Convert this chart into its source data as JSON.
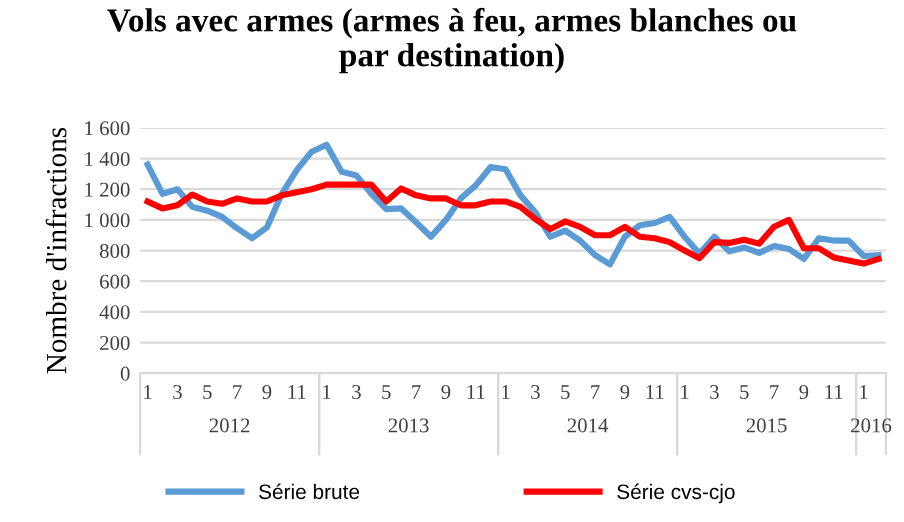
{
  "chart_data": {
    "type": "line",
    "title": "Vols avec armes (armes à feu, armes blanches ou\npar destination)",
    "ylabel": "Nombre d'infractions",
    "categories": [
      "1",
      null,
      "3",
      null,
      "5",
      null,
      "7",
      null,
      "9",
      null,
      "11",
      null,
      "1",
      null,
      "3",
      null,
      "5",
      null,
      "7",
      null,
      "9",
      null,
      "11",
      null,
      "1",
      null,
      "3",
      null,
      "5",
      null,
      "7",
      null,
      "9",
      null,
      "11",
      null,
      "1",
      null,
      "3",
      null,
      "5",
      null,
      "7",
      null,
      "9",
      null,
      "11",
      null,
      "1",
      null
    ],
    "annotations": [
      "2012",
      "2013",
      "2014",
      "2015",
      "2016"
    ],
    "series": [
      {
        "name": "Série brute",
        "color": "#5b9bd5",
        "values": [
          1360,
          1170,
          1200,
          1085,
          1060,
          1020,
          945,
          880,
          950,
          1170,
          1325,
          1445,
          1490,
          1315,
          1290,
          1170,
          1070,
          1075,
          985,
          890,
          1000,
          1140,
          1225,
          1345,
          1330,
          1160,
          1050,
          890,
          930,
          865,
          770,
          710,
          890,
          965,
          980,
          1020,
          890,
          780,
          890,
          795,
          820,
          785,
          830,
          810,
          745,
          880,
          865,
          865,
          765,
          770
        ]
      },
      {
        "name": "Série cvs-cjo",
        "color": "#ff0000",
        "values": [
          1120,
          1075,
          1095,
          1165,
          1120,
          1105,
          1140,
          1120,
          1120,
          1160,
          1180,
          1200,
          1230,
          1230,
          1230,
          1230,
          1120,
          1205,
          1160,
          1140,
          1140,
          1095,
          1095,
          1120,
          1120,
          1085,
          1005,
          940,
          990,
          955,
          900,
          900,
          955,
          890,
          880,
          855,
          800,
          750,
          855,
          850,
          870,
          845,
          955,
          1000,
          815,
          815,
          755,
          735,
          715,
          745
        ]
      }
    ],
    "ylim": [
      0,
      1600
    ],
    "yticks": [
      0,
      200,
      400,
      600,
      800,
      {
        "value": 1000,
        "label": "1 000"
      },
      {
        "value": 1200,
        "label": "1 200"
      },
      {
        "value": 1400,
        "label": "1 400"
      },
      {
        "value": 1600,
        "label": "1 600"
      }
    ],
    "grid": "y",
    "legend": "bottom",
    "marker": "none",
    "line_style": "solid"
  }
}
